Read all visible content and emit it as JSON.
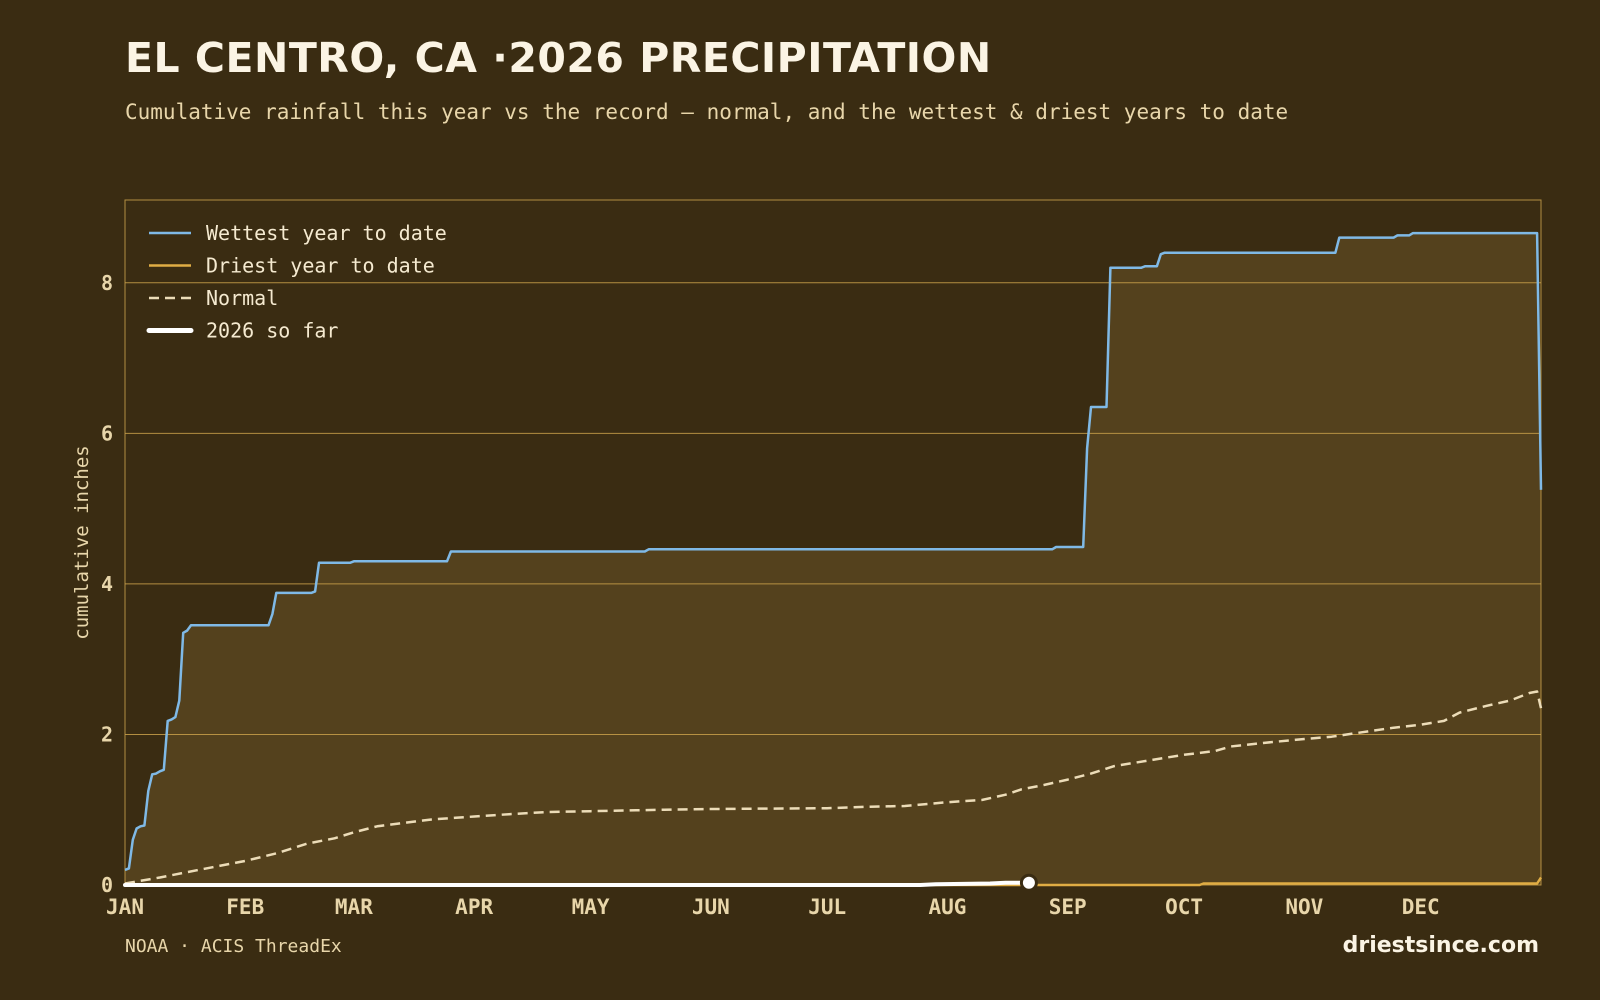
{
  "header": {
    "title": "EL CENTRO, CA ·2026 PRECIPITATION",
    "subtitle": "Cumulative rainfall this year vs the record — normal, and the wettest & driest years to date"
  },
  "footer": {
    "source": "NOAA · ACIS ThreadEx",
    "brand": "driestsince.com"
  },
  "colors": {
    "background": "#3a2c12",
    "area_fill": "#54411d",
    "grid": "#c9a04a",
    "wettest": "#7fb9e6",
    "driest": "#e0ad44",
    "normal": "#ecdcb8",
    "current": "#ffffff"
  },
  "chart_data": {
    "type": "line",
    "title": "EL CENTRO, CA ·2026 PRECIPITATION",
    "ylabel": "cumulative inches",
    "xlabel": "",
    "xlim": [
      1,
      366
    ],
    "ylim": [
      0,
      9.1
    ],
    "y_ticks": [
      0,
      2,
      4,
      6,
      8
    ],
    "x_ticks": [
      {
        "label": "JAN",
        "day": 1
      },
      {
        "label": "FEB",
        "day": 32
      },
      {
        "label": "MAR",
        "day": 60
      },
      {
        "label": "APR",
        "day": 91
      },
      {
        "label": "MAY",
        "day": 121
      },
      {
        "label": "JUN",
        "day": 152
      },
      {
        "label": "JUL",
        "day": 182
      },
      {
        "label": "AUG",
        "day": 213
      },
      {
        "label": "SEP",
        "day": 244
      },
      {
        "label": "OCT",
        "day": 274
      },
      {
        "label": "NOV",
        "day": 305
      },
      {
        "label": "DEC",
        "day": 335
      }
    ],
    "grid": "horizontal",
    "legend_position": "top-left",
    "series": [
      {
        "name": "Wettest year to date",
        "key": "wettest",
        "style": "solid",
        "points": [
          [
            1,
            0.2
          ],
          [
            2,
            0.22
          ],
          [
            3,
            0.6
          ],
          [
            4,
            0.75
          ],
          [
            5,
            0.78
          ],
          [
            6,
            0.79
          ],
          [
            7,
            1.25
          ],
          [
            8,
            1.47
          ],
          [
            9,
            1.48
          ],
          [
            10,
            1.51
          ],
          [
            11,
            1.53
          ],
          [
            12,
            2.18
          ],
          [
            13,
            2.2
          ],
          [
            14,
            2.23
          ],
          [
            15,
            2.45
          ],
          [
            16,
            3.35
          ],
          [
            17,
            3.38
          ],
          [
            18,
            3.45
          ],
          [
            38,
            3.45
          ],
          [
            39,
            3.6
          ],
          [
            40,
            3.88
          ],
          [
            49,
            3.88
          ],
          [
            50,
            3.9
          ],
          [
            51,
            4.28
          ],
          [
            59,
            4.28
          ],
          [
            60,
            4.3
          ],
          [
            84,
            4.3
          ],
          [
            85,
            4.43
          ],
          [
            135,
            4.43
          ],
          [
            136,
            4.46
          ],
          [
            240,
            4.46
          ],
          [
            241,
            4.49
          ],
          [
            248,
            4.49
          ],
          [
            249,
            5.8
          ],
          [
            250,
            6.35
          ],
          [
            254,
            6.35
          ],
          [
            255,
            8.2
          ],
          [
            263,
            8.2
          ],
          [
            264,
            8.22
          ],
          [
            267,
            8.22
          ],
          [
            268,
            8.38
          ],
          [
            269,
            8.4
          ],
          [
            313,
            8.4
          ],
          [
            314,
            8.6
          ],
          [
            328,
            8.6
          ],
          [
            329,
            8.63
          ],
          [
            332,
            8.63
          ],
          [
            333,
            8.66
          ],
          [
            365,
            8.66
          ],
          [
            366,
            5.25
          ]
        ]
      },
      {
        "name": "Driest year to date",
        "key": "driest",
        "style": "solid",
        "points": [
          [
            1,
            0
          ],
          [
            278,
            0
          ],
          [
            279,
            0.02
          ],
          [
            365,
            0.02
          ],
          [
            366,
            0.1
          ]
        ]
      },
      {
        "name": "Normal",
        "key": "normal",
        "style": "dashed",
        "points": [
          [
            1,
            0.02
          ],
          [
            10,
            0.1
          ],
          [
            20,
            0.2
          ],
          [
            32,
            0.32
          ],
          [
            40,
            0.42
          ],
          [
            48,
            0.55
          ],
          [
            55,
            0.62
          ],
          [
            60,
            0.7
          ],
          [
            66,
            0.78
          ],
          [
            72,
            0.82
          ],
          [
            80,
            0.87
          ],
          [
            91,
            0.91
          ],
          [
            100,
            0.94
          ],
          [
            110,
            0.97
          ],
          [
            121,
            0.98
          ],
          [
            140,
            1.0
          ],
          [
            152,
            1.01
          ],
          [
            182,
            1.02
          ],
          [
            193,
            1.04
          ],
          [
            202,
            1.05
          ],
          [
            213,
            1.1
          ],
          [
            222,
            1.13
          ],
          [
            228,
            1.2
          ],
          [
            232,
            1.27
          ],
          [
            238,
            1.33
          ],
          [
            244,
            1.4
          ],
          [
            250,
            1.48
          ],
          [
            256,
            1.58
          ],
          [
            262,
            1.63
          ],
          [
            268,
            1.68
          ],
          [
            274,
            1.73
          ],
          [
            282,
            1.78
          ],
          [
            286,
            1.84
          ],
          [
            295,
            1.89
          ],
          [
            305,
            1.94
          ],
          [
            312,
            1.97
          ],
          [
            320,
            2.03
          ],
          [
            328,
            2.09
          ],
          [
            335,
            2.13
          ],
          [
            341,
            2.18
          ],
          [
            345,
            2.29
          ],
          [
            352,
            2.38
          ],
          [
            358,
            2.45
          ],
          [
            363,
            2.55
          ],
          [
            365,
            2.57
          ],
          [
            366,
            2.35
          ]
        ]
      },
      {
        "name": "2026 so far",
        "key": "current",
        "style": "thick",
        "points": [
          [
            1,
            0
          ],
          [
            206,
            0
          ],
          [
            210,
            0.01
          ],
          [
            224,
            0.02
          ],
          [
            228,
            0.03
          ],
          [
            234,
            0.03
          ]
        ]
      }
    ]
  }
}
